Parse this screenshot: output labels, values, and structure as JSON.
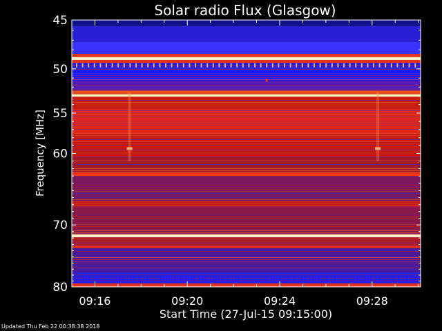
{
  "chart_data": {
    "type": "heatmap",
    "title": "Solar radio Flux (Glasgow)",
    "xlabel": "Start Time (27-Jul-15 09:15:00)",
    "ylabel": "Frequency [MHz]",
    "x_range_minutes": [
      0,
      15.1
    ],
    "ylim_mhz": [
      45,
      80
    ],
    "y_scale": "log",
    "y_ticks": [
      {
        "value": 45,
        "label": "45"
      },
      {
        "value": 50,
        "label": "50"
      },
      {
        "value": 55,
        "label": "55"
      },
      {
        "value": 60,
        "label": "60"
      },
      {
        "value": 70,
        "label": "70"
      },
      {
        "value": 80,
        "label": "80"
      }
    ],
    "x_ticks": [
      {
        "minute": 1,
        "label": "09:16"
      },
      {
        "minute": 5,
        "label": "09:20"
      },
      {
        "minute": 9,
        "label": "09:24"
      },
      {
        "minute": 13,
        "label": "09:28"
      }
    ],
    "colormap": {
      "low": "#1a1aff",
      "mid": "#e8261a",
      "high": "#fff2c8"
    },
    "bands": [
      {
        "f1": 44.8,
        "f2": 45.6,
        "color": "#101088"
      },
      {
        "f1": 45.6,
        "f2": 47.2,
        "color": "#2a1fd6"
      },
      {
        "f1": 47.2,
        "f2": 48.4,
        "color": "#3b34ff"
      },
      {
        "f1": 48.4,
        "f2": 48.75,
        "color": "#e8321c"
      },
      {
        "f1": 48.75,
        "f2": 49.05,
        "color": "#fff2c8"
      },
      {
        "f1": 49.05,
        "f2": 49.35,
        "color": "#e8321c"
      },
      {
        "f1": 49.35,
        "f2": 50.1,
        "color": "#2a1fd6"
      },
      {
        "f1": 50.1,
        "f2": 51.3,
        "color": "#1a1aff"
      },
      {
        "f1": 51.3,
        "f2": 52.4,
        "color": "#5a1ab0"
      },
      {
        "f1": 52.4,
        "f2": 52.8,
        "color": "#e84a1c"
      },
      {
        "f1": 52.8,
        "f2": 53.1,
        "color": "#fff0b4"
      },
      {
        "f1": 53.1,
        "f2": 54.5,
        "color": "#c81e12"
      },
      {
        "f1": 54.5,
        "f2": 57.5,
        "color": "#e0281a"
      },
      {
        "f1": 57.5,
        "f2": 60.5,
        "color": "#c41c14"
      },
      {
        "f1": 60.5,
        "f2": 62.5,
        "color": "#a01a2a"
      },
      {
        "f1": 62.5,
        "f2": 63.0,
        "color": "#f23a1a"
      },
      {
        "f1": 63.0,
        "f2": 66.5,
        "color": "#7a1a5c"
      },
      {
        "f1": 66.5,
        "f2": 67.3,
        "color": "#c41c14"
      },
      {
        "f1": 67.3,
        "f2": 71.4,
        "color": "#8a1a4a"
      },
      {
        "f1": 71.4,
        "f2": 71.9,
        "color": "#fff2c8"
      },
      {
        "f1": 71.9,
        "f2": 73.2,
        "color": "#b01c22"
      },
      {
        "f1": 73.2,
        "f2": 73.6,
        "color": "#e8321c"
      },
      {
        "f1": 73.6,
        "f2": 77.5,
        "color": "#4a1a9c"
      },
      {
        "f1": 77.5,
        "f2": 79.4,
        "color": "#2a1fd6"
      },
      {
        "f1": 79.4,
        "f2": 80.3,
        "color": "#e8321c"
      }
    ]
  },
  "footer": {
    "updated": "Updated Thu Feb 22 00:38:38 2018"
  }
}
